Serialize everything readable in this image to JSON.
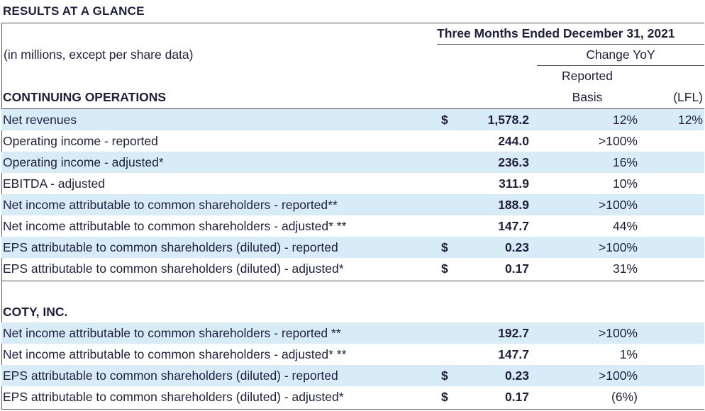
{
  "title": "RESULTS AT A GLANCE",
  "header": {
    "period": "Three Months Ended December 31, 2021",
    "units": "(in millions, except per share data)",
    "change": "Change YoY",
    "reported_line1": "Reported",
    "reported_line2": "Basis",
    "lfl": "(LFL)"
  },
  "continuing": {
    "title": "CONTINUING OPERATIONS",
    "rows": [
      {
        "label": "Net revenues",
        "dollar": "$",
        "value": "1,578.2",
        "reported": "12%",
        "lfl": "12%"
      },
      {
        "label": "Operating income - reported",
        "dollar": "",
        "value": "244.0",
        "reported": ">100%",
        "lfl": ""
      },
      {
        "label": "Operating income - adjusted*",
        "dollar": "",
        "value": "236.3",
        "reported": "16%",
        "lfl": ""
      },
      {
        "label": "EBITDA - adjusted",
        "dollar": "",
        "value": "311.9",
        "reported": "10%",
        "lfl": ""
      },
      {
        "label": "Net income attributable to common shareholders - reported**",
        "dollar": "",
        "value": "188.9",
        "reported": ">100%",
        "lfl": ""
      },
      {
        "label": "Net income attributable to common shareholders - adjusted* **",
        "dollar": "",
        "value": "147.7",
        "reported": "44%",
        "lfl": ""
      },
      {
        "label": "EPS attributable to common shareholders (diluted) - reported",
        "dollar": "$",
        "value": "0.23",
        "reported": ">100%",
        "lfl": ""
      },
      {
        "label": "EPS attributable to common shareholders (diluted) - adjusted*",
        "dollar": "$",
        "value": "0.17",
        "reported": "31%",
        "lfl": ""
      }
    ]
  },
  "coty": {
    "title": "COTY, INC.",
    "rows": [
      {
        "label": "Net income attributable to common shareholders - reported **",
        "dollar": "",
        "value": "192.7",
        "reported": ">100%",
        "lfl": ""
      },
      {
        "label": "Net income attributable to common shareholders - adjusted* **",
        "dollar": "",
        "value": "147.7",
        "reported": "1%",
        "lfl": ""
      },
      {
        "label": "EPS attributable to common shareholders (diluted) - reported",
        "dollar": "$",
        "value": "0.23",
        "reported": ">100%",
        "lfl": ""
      },
      {
        "label": "EPS attributable to common shareholders (diluted) - adjusted*",
        "dollar": "$",
        "value": "0.17",
        "reported": "(6%)",
        "lfl": ""
      }
    ]
  },
  "colors": {
    "shade": "#d8ecf8",
    "text": "#1f1f3d",
    "rule": "#555555"
  }
}
